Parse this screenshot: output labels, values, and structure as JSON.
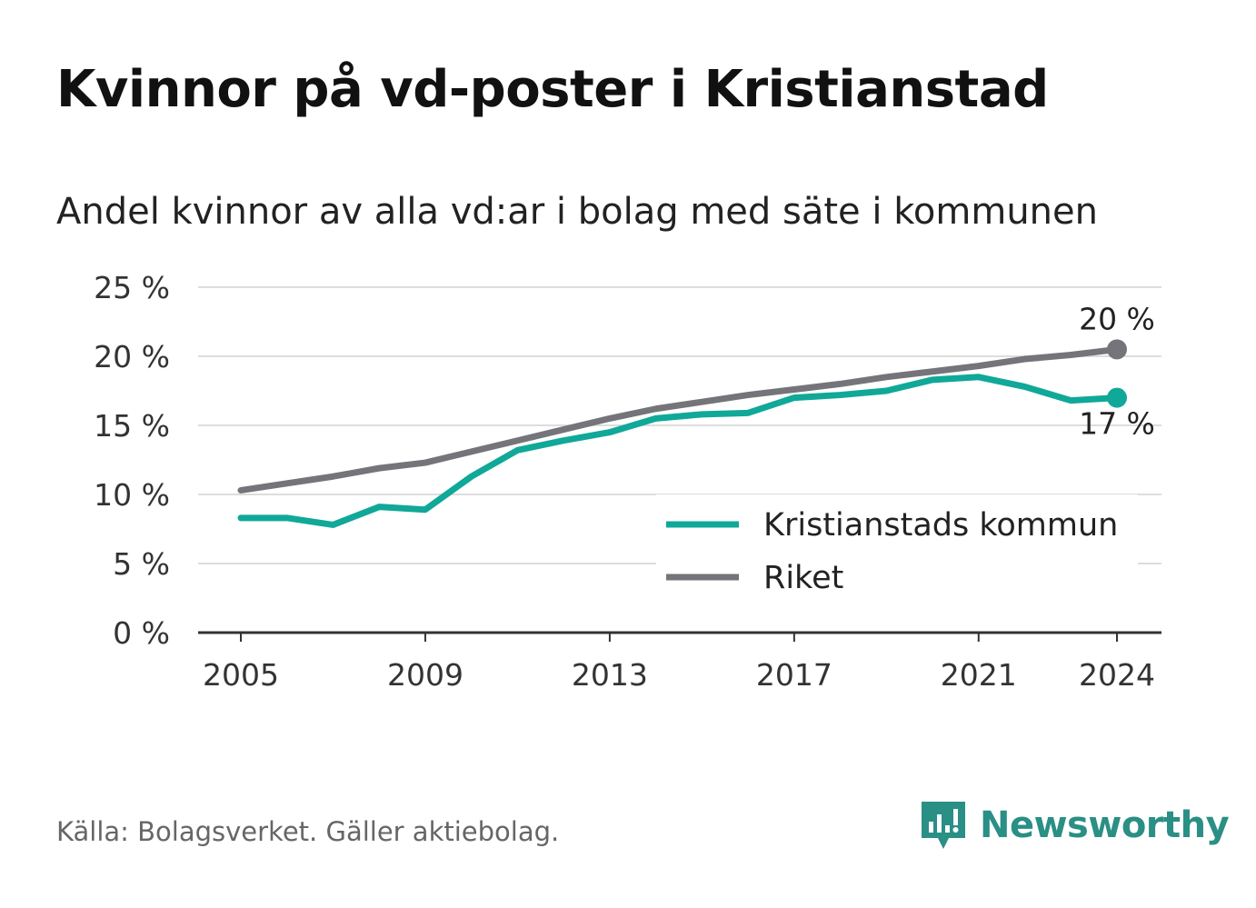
{
  "title": "Kvinnor på vd-poster i Kristianstad",
  "subtitle": "Andel kvinnor av alla vd:ar i bolag med säte i kommunen",
  "source": "Källa: Bolagsverket. Gäller aktiebolag.",
  "brand": "Newsworthy",
  "chart_data": {
    "type": "line",
    "x": [
      2005,
      2006,
      2007,
      2008,
      2009,
      2010,
      2011,
      2012,
      2013,
      2014,
      2015,
      2016,
      2017,
      2018,
      2019,
      2020,
      2021,
      2022,
      2023,
      2024
    ],
    "xticks": [
      "2005",
      "2009",
      "2013",
      "2017",
      "2021",
      "2024"
    ],
    "yticks": [
      0,
      5,
      10,
      15,
      20,
      25
    ],
    "ytick_labels": [
      "0 %",
      "5 %",
      "10 %",
      "15 %",
      "20 %",
      "25 %"
    ],
    "ylim": [
      0,
      25
    ],
    "xlim": [
      2004.5,
      2025
    ],
    "grid": true,
    "legend_position": "bottom-right",
    "series": [
      {
        "name": "Kristianstads kommun",
        "color": "#10a898",
        "values": [
          8.3,
          8.3,
          7.8,
          9.1,
          8.9,
          11.3,
          13.2,
          13.9,
          14.5,
          15.5,
          15.8,
          15.9,
          17.0,
          17.2,
          17.5,
          18.3,
          18.5,
          17.8,
          16.8,
          17.0
        ],
        "end_label": "17 %"
      },
      {
        "name": "Riket",
        "color": "#75747a",
        "values": [
          10.3,
          10.8,
          11.3,
          11.9,
          12.3,
          13.1,
          13.9,
          14.7,
          15.5,
          16.2,
          16.7,
          17.2,
          17.6,
          18.0,
          18.5,
          18.9,
          19.3,
          19.8,
          20.1,
          20.5
        ],
        "end_label": "20 %"
      }
    ]
  }
}
